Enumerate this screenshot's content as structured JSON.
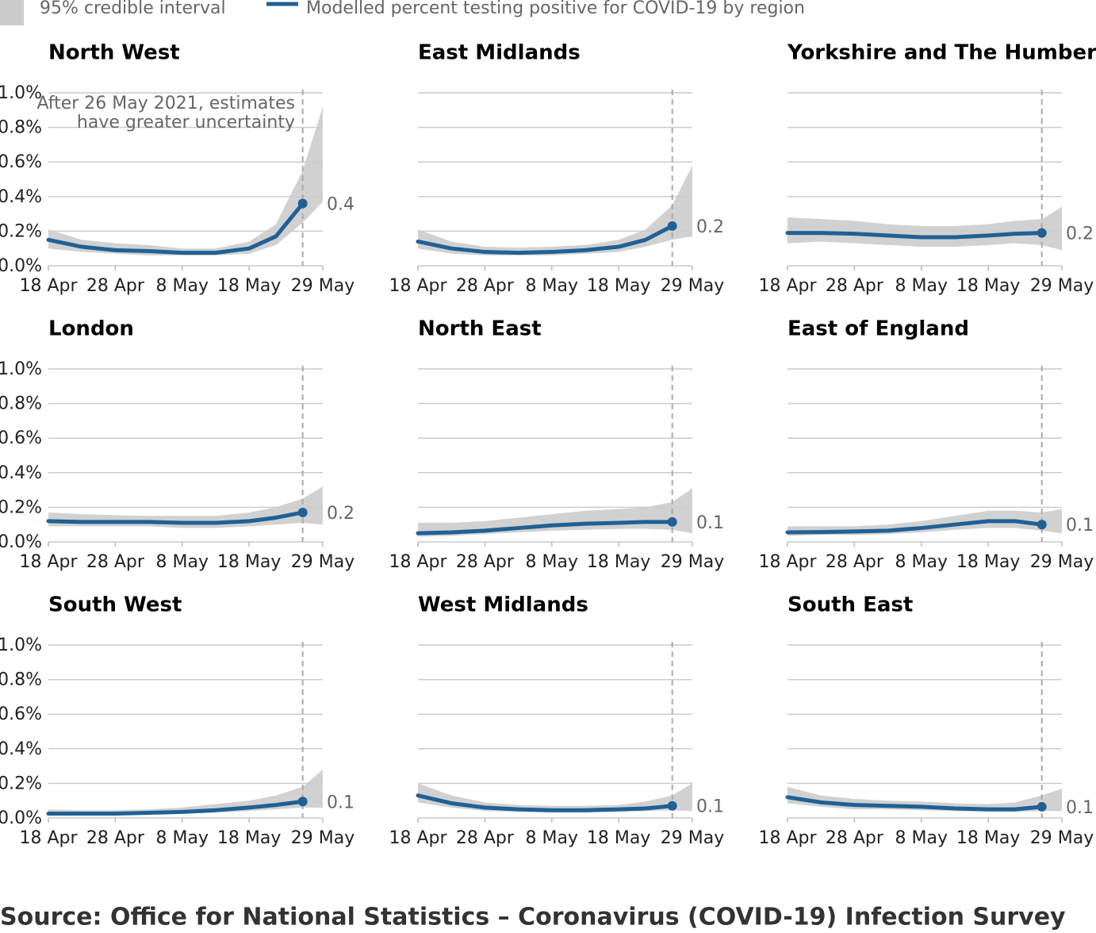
{
  "legend": [
    {
      "name": "95% credible interval",
      "color": "#cccccc"
    },
    {
      "name": "Modelled percent testing positive for COVID-19 by region",
      "color": "#206095"
    }
  ],
  "chart_data": [
    {
      "type": "line",
      "title": "North West",
      "annotation": [
        "After 26 May 2021, estimates",
        "have greater uncertainty"
      ],
      "vline": "26 May",
      "x": [
        "18 Apr",
        "23 Apr",
        "28 Apr",
        "3 May",
        "8 May",
        "13 May",
        "18 May",
        "22 May",
        "26 May",
        "29 May"
      ],
      "values": [
        0.15,
        0.11,
        0.09,
        0.085,
        0.075,
        0.075,
        0.1,
        0.17,
        0.36,
        null
      ],
      "value_labels": [
        null,
        null,
        null,
        null,
        null,
        null,
        null,
        null,
        "0.4",
        null
      ],
      "lower": [
        0.1,
        0.08,
        0.07,
        0.06,
        0.06,
        0.06,
        0.07,
        0.12,
        0.25,
        0.37
      ],
      "upper": [
        0.21,
        0.15,
        0.13,
        0.12,
        0.1,
        0.1,
        0.14,
        0.24,
        0.55,
        0.92
      ],
      "xlim": [
        "18 Apr",
        "29 May"
      ],
      "xticks": [
        "18 Apr",
        "28 Apr",
        "8 May",
        "18 May",
        "29 May"
      ],
      "ylim": [
        0,
        1
      ],
      "yticks": [
        {
          "value": 0,
          "label": "0.0%"
        },
        {
          "value": 0.2,
          "label": "0.2%"
        },
        {
          "value": 0.4,
          "label": "0.4%"
        },
        {
          "value": 0.6,
          "label": "0.6%"
        },
        {
          "value": 0.8,
          "label": "0.8%"
        },
        {
          "value": 1,
          "label": "1.0%"
        }
      ],
      "grid": true
    },
    {
      "type": "line",
      "title": "East Midlands",
      "vline": "26 May",
      "x": [
        "18 Apr",
        "23 Apr",
        "28 Apr",
        "3 May",
        "8 May",
        "13 May",
        "18 May",
        "22 May",
        "26 May",
        "29 May"
      ],
      "values": [
        0.14,
        0.1,
        0.08,
        0.075,
        0.08,
        0.09,
        0.11,
        0.15,
        0.23,
        null
      ],
      "value_labels": [
        null,
        null,
        null,
        null,
        null,
        null,
        null,
        null,
        "0.2",
        null
      ],
      "lower": [
        0.1,
        0.07,
        0.06,
        0.06,
        0.06,
        0.07,
        0.08,
        0.11,
        0.15,
        0.17
      ],
      "upper": [
        0.21,
        0.14,
        0.11,
        0.105,
        0.11,
        0.12,
        0.15,
        0.21,
        0.35,
        0.58
      ],
      "xlim": [
        "18 Apr",
        "29 May"
      ],
      "xticks": [
        "18 Apr",
        "28 Apr",
        "8 May",
        "18 May",
        "29 May"
      ],
      "ylim": [
        0,
        1
      ],
      "yticks": [
        0,
        0.2,
        0.4,
        0.6,
        0.8,
        1
      ],
      "grid": true
    },
    {
      "type": "line",
      "title": "Yorkshire and The Humber",
      "vline": "26 May",
      "x": [
        "18 Apr",
        "23 Apr",
        "28 Apr",
        "3 May",
        "8 May",
        "13 May",
        "18 May",
        "22 May",
        "26 May",
        "29 May"
      ],
      "values": [
        0.19,
        0.19,
        0.185,
        0.175,
        0.165,
        0.165,
        0.175,
        0.185,
        0.19,
        null
      ],
      "value_labels": [
        null,
        null,
        null,
        null,
        null,
        null,
        null,
        null,
        "0.2",
        null
      ],
      "lower": [
        0.13,
        0.14,
        0.13,
        0.12,
        0.11,
        0.11,
        0.12,
        0.13,
        0.12,
        0.09
      ],
      "upper": [
        0.28,
        0.27,
        0.26,
        0.24,
        0.23,
        0.23,
        0.24,
        0.26,
        0.27,
        0.34
      ],
      "xlim": [
        "18 Apr",
        "29 May"
      ],
      "xticks": [
        "18 Apr",
        "28 Apr",
        "8 May",
        "18 May",
        "29 May"
      ],
      "ylim": [
        0,
        1
      ],
      "yticks": [
        0,
        0.2,
        0.4,
        0.6,
        0.8,
        1
      ],
      "grid": true
    },
    {
      "type": "line",
      "title": "London",
      "vline": "26 May",
      "x": [
        "18 Apr",
        "23 Apr",
        "28 Apr",
        "3 May",
        "8 May",
        "13 May",
        "18 May",
        "22 May",
        "26 May",
        "29 May"
      ],
      "values": [
        0.12,
        0.115,
        0.115,
        0.115,
        0.11,
        0.11,
        0.12,
        0.14,
        0.17,
        null
      ],
      "value_labels": [
        null,
        null,
        null,
        null,
        null,
        null,
        null,
        null,
        "0.2",
        null
      ],
      "lower": [
        0.09,
        0.09,
        0.09,
        0.09,
        0.08,
        0.08,
        0.09,
        0.1,
        0.11,
        0.1
      ],
      "upper": [
        0.17,
        0.16,
        0.155,
        0.15,
        0.15,
        0.15,
        0.17,
        0.2,
        0.25,
        0.32
      ],
      "xlim": [
        "18 Apr",
        "29 May"
      ],
      "xticks": [
        "18 Apr",
        "28 Apr",
        "8 May",
        "18 May",
        "29 May"
      ],
      "ylim": [
        0,
        1
      ],
      "yticks": [
        {
          "value": 0,
          "label": "0.0%"
        },
        {
          "value": 0.2,
          "label": "0.2%"
        },
        {
          "value": 0.4,
          "label": "0.4%"
        },
        {
          "value": 0.6,
          "label": "0.6%"
        },
        {
          "value": 0.8,
          "label": "0.8%"
        },
        {
          "value": 1,
          "label": "1.0%"
        }
      ],
      "grid": true
    },
    {
      "type": "line",
      "title": "North East",
      "vline": "26 May",
      "x": [
        "18 Apr",
        "23 Apr",
        "28 Apr",
        "3 May",
        "8 May",
        "13 May",
        "18 May",
        "22 May",
        "26 May",
        "29 May"
      ],
      "values": [
        0.05,
        0.055,
        0.065,
        0.08,
        0.095,
        0.105,
        0.11,
        0.115,
        0.115,
        null
      ],
      "value_labels": [
        null,
        null,
        null,
        null,
        null,
        null,
        null,
        null,
        "0.1",
        null
      ],
      "lower": [
        0.03,
        0.035,
        0.045,
        0.055,
        0.065,
        0.07,
        0.075,
        0.075,
        0.07,
        0.05
      ],
      "upper": [
        0.11,
        0.11,
        0.12,
        0.14,
        0.16,
        0.18,
        0.19,
        0.2,
        0.23,
        0.31
      ],
      "xlim": [
        "18 Apr",
        "29 May"
      ],
      "xticks": [
        "18 Apr",
        "28 Apr",
        "8 May",
        "18 May",
        "29 May"
      ],
      "ylim": [
        0,
        1
      ],
      "yticks": [
        0,
        0.2,
        0.4,
        0.6,
        0.8,
        1
      ],
      "grid": true
    },
    {
      "type": "line",
      "title": "East of England",
      "vline": "26 May",
      "x": [
        "18 Apr",
        "23 Apr",
        "28 Apr",
        "3 May",
        "8 May",
        "13 May",
        "18 May",
        "22 May",
        "26 May",
        "29 May"
      ],
      "values": [
        0.055,
        0.057,
        0.06,
        0.065,
        0.08,
        0.1,
        0.12,
        0.12,
        0.1,
        null
      ],
      "value_labels": [
        null,
        null,
        null,
        null,
        null,
        null,
        null,
        null,
        "0.1",
        null
      ],
      "lower": [
        0.035,
        0.04,
        0.04,
        0.045,
        0.055,
        0.07,
        0.08,
        0.08,
        0.065,
        0.05
      ],
      "upper": [
        0.09,
        0.09,
        0.09,
        0.1,
        0.12,
        0.15,
        0.18,
        0.18,
        0.17,
        0.19
      ],
      "xlim": [
        "18 Apr",
        "29 May"
      ],
      "xticks": [
        "18 Apr",
        "28 Apr",
        "8 May",
        "18 May",
        "29 May"
      ],
      "ylim": [
        0,
        1
      ],
      "yticks": [
        0,
        0.2,
        0.4,
        0.6,
        0.8,
        1
      ],
      "grid": true
    },
    {
      "type": "line",
      "title": "South West",
      "vline": "26 May",
      "x": [
        "18 Apr",
        "23 Apr",
        "28 Apr",
        "3 May",
        "8 May",
        "13 May",
        "18 May",
        "22 May",
        "26 May",
        "29 May"
      ],
      "values": [
        0.025,
        0.025,
        0.025,
        0.03,
        0.035,
        0.045,
        0.06,
        0.075,
        0.095,
        null
      ],
      "value_labels": [
        null,
        null,
        null,
        null,
        null,
        null,
        null,
        null,
        "0.1",
        null
      ],
      "lower": [
        0.015,
        0.015,
        0.015,
        0.02,
        0.025,
        0.03,
        0.04,
        0.05,
        0.06,
        0.06
      ],
      "upper": [
        0.05,
        0.045,
        0.045,
        0.05,
        0.06,
        0.08,
        0.1,
        0.13,
        0.18,
        0.28
      ],
      "xlim": [
        "18 Apr",
        "29 May"
      ],
      "xticks": [
        "18 Apr",
        "28 Apr",
        "8 May",
        "18 May",
        "29 May"
      ],
      "ylim": [
        0,
        1
      ],
      "yticks": [
        {
          "value": 0,
          "label": "0.0%"
        },
        {
          "value": 0.2,
          "label": "0.2%"
        },
        {
          "value": 0.4,
          "label": "0.4%"
        },
        {
          "value": 0.6,
          "label": "0.6%"
        },
        {
          "value": 0.8,
          "label": "0.8%"
        },
        {
          "value": 1,
          "label": "1.0%"
        }
      ],
      "grid": true
    },
    {
      "type": "line",
      "title": "West Midlands",
      "vline": "26 May",
      "x": [
        "18 Apr",
        "23 Apr",
        "28 Apr",
        "3 May",
        "8 May",
        "13 May",
        "18 May",
        "22 May",
        "26 May",
        "29 May"
      ],
      "values": [
        0.13,
        0.085,
        0.06,
        0.05,
        0.045,
        0.045,
        0.05,
        0.055,
        0.07,
        null
      ],
      "value_labels": [
        null,
        null,
        null,
        null,
        null,
        null,
        null,
        null,
        "0.1",
        null
      ],
      "lower": [
        0.09,
        0.06,
        0.04,
        0.035,
        0.03,
        0.03,
        0.035,
        0.04,
        0.045,
        0.04
      ],
      "upper": [
        0.2,
        0.13,
        0.09,
        0.075,
        0.07,
        0.07,
        0.075,
        0.095,
        0.13,
        0.2
      ],
      "xlim": [
        "18 Apr",
        "29 May"
      ],
      "xticks": [
        "18 Apr",
        "28 Apr",
        "8 May",
        "18 May",
        "29 May"
      ],
      "ylim": [
        0,
        1
      ],
      "yticks": [
        0,
        0.2,
        0.4,
        0.6,
        0.8,
        1
      ],
      "grid": true
    },
    {
      "type": "line",
      "title": "South East",
      "vline": "26 May",
      "x": [
        "18 Apr",
        "23 Apr",
        "28 Apr",
        "3 May",
        "8 May",
        "13 May",
        "18 May",
        "22 May",
        "26 May",
        "29 May"
      ],
      "values": [
        0.12,
        0.09,
        0.075,
        0.07,
        0.065,
        0.055,
        0.05,
        0.05,
        0.065,
        null
      ],
      "value_labels": [
        null,
        null,
        null,
        null,
        null,
        null,
        null,
        null,
        "0.1",
        null
      ],
      "lower": [
        0.085,
        0.065,
        0.05,
        0.05,
        0.045,
        0.04,
        0.035,
        0.035,
        0.04,
        0.04
      ],
      "upper": [
        0.18,
        0.13,
        0.11,
        0.1,
        0.095,
        0.085,
        0.08,
        0.09,
        0.13,
        0.17
      ],
      "xlim": [
        "18 Apr",
        "29 May"
      ],
      "xticks": [
        "18 Apr",
        "28 Apr",
        "8 May",
        "18 May",
        "29 May"
      ],
      "ylim": [
        0,
        1
      ],
      "yticks": [
        0,
        0.2,
        0.4,
        0.6,
        0.8,
        1
      ],
      "grid": true
    }
  ],
  "source": "Source: Office for National Statistics – Coronavirus (COVID-19) Infection Survey"
}
